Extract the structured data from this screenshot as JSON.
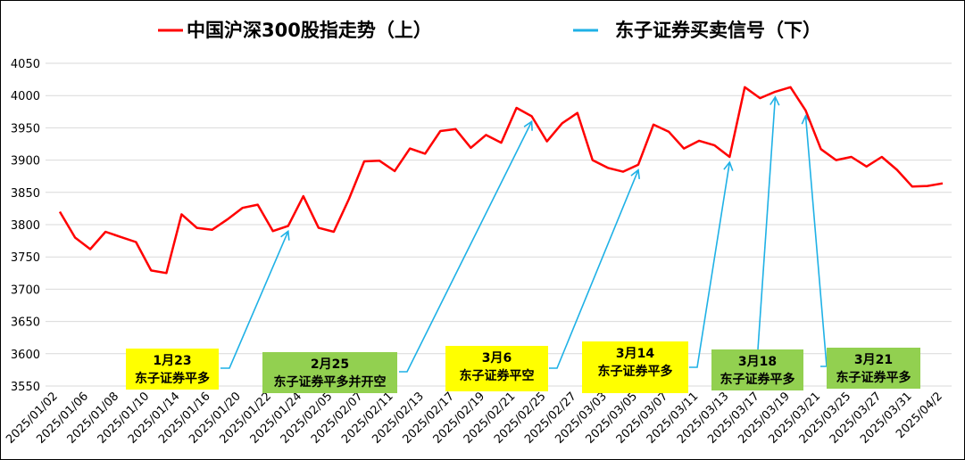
{
  "colors": {
    "line": "#ff0000",
    "signal": "#1fb1e6",
    "yellow_box": "#ffff00",
    "green_box": "#92d050",
    "grid": "#d9d9d9"
  },
  "chart_data": {
    "type": "line",
    "legend": [
      {
        "label": "中国沪深300股指走势（上）",
        "color": "#ff0000"
      },
      {
        "label": "东子证券买卖信号（下）",
        "color": "#1fb1e6"
      }
    ],
    "legend_position": "top",
    "grid": true,
    "ylim": [
      3550,
      4050
    ],
    "yticks": [
      3550,
      3600,
      3650,
      3700,
      3750,
      3800,
      3850,
      3900,
      3950,
      4000,
      4050
    ],
    "xtick_labels": [
      "2025/01/02",
      "2025/01/06",
      "2025/01/08",
      "2025/01/10",
      "2025/01/14",
      "2025/01/16",
      "2025/01/20",
      "2025/01/22",
      "2025/01/24",
      "2025/02/05",
      "2025/02/07",
      "2025/02/11",
      "2025/02/13",
      "2025/02/17",
      "2025/02/19",
      "2025/02/21",
      "2025/02/25",
      "2025/02/27",
      "2025/03/03",
      "2025/03/05",
      "2025/03/07",
      "2025/03/11",
      "2025/03/13",
      "2025/03/17",
      "2025/03/19",
      "2025/03/21",
      "2025/03/25",
      "2025/03/27",
      "2025/03/31",
      "2025/04/2"
    ],
    "series": [
      {
        "name": "中国沪深300股指走势（上）",
        "values": [
          3820,
          3780,
          3762,
          3789,
          3781,
          3773,
          3729,
          3725,
          3816,
          3795,
          3792,
          3808,
          3826,
          3831,
          3790,
          3798,
          3844,
          3795,
          3789,
          3840,
          3898,
          3899,
          3883,
          3918,
          3910,
          3945,
          3948,
          3919,
          3939,
          3927,
          3981,
          3968,
          3929,
          3957,
          3973,
          3900,
          3888,
          3882,
          3893,
          3955,
          3944,
          3918,
          3930,
          3923,
          3905,
          4013,
          3996,
          4006,
          4013,
          3977,
          3917,
          3900,
          3905,
          3890,
          3905,
          3885,
          3859,
          3860,
          3864
        ]
      }
    ],
    "signals": [
      {
        "date": "1月23",
        "text": "东子证券平多",
        "box": "yellow",
        "index": 15,
        "value": 3798
      },
      {
        "date": "2月25",
        "text": "东子证券平多并开空",
        "box": "green",
        "index": 31,
        "value": 3968
      },
      {
        "date": "3月6",
        "text": "东子证券平空",
        "box": "yellow",
        "index": 38,
        "value": 3893
      },
      {
        "date": "3月14",
        "text": "东子证券平多",
        "box": "yellow",
        "index": 44,
        "value": 3905
      },
      {
        "date": "3月18",
        "text": "东子证券平多",
        "box": "green",
        "index": 47,
        "value": 4006
      },
      {
        "date": "3月21",
        "text": "东子证券平多",
        "box": "green",
        "index": 49,
        "value": 3977
      }
    ]
  }
}
